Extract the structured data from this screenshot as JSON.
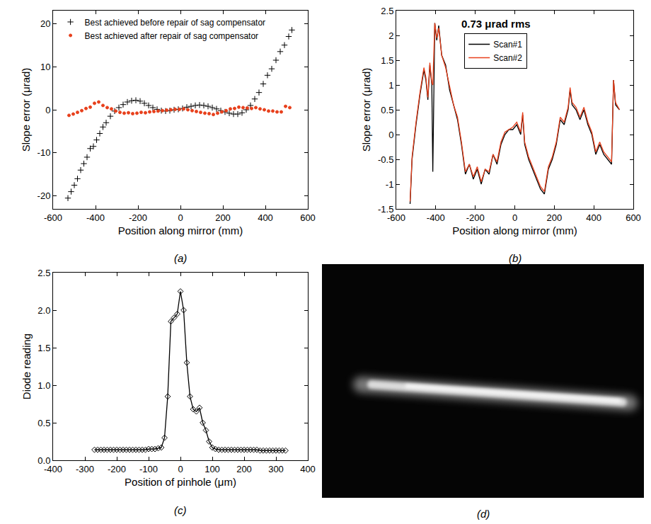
{
  "chart_data": [
    {
      "type": "scatter",
      "label": "(a)",
      "x_label": "Position along mirror (mm)",
      "y_label": "Slope error (μrad)",
      "xlim": [
        -600,
        600
      ],
      "xticks": [
        -600,
        -400,
        -200,
        0,
        200,
        400,
        600
      ],
      "ylim": [
        -23,
        23
      ],
      "yticks": [
        -20,
        -10,
        0,
        10,
        20
      ],
      "legend": "top left",
      "grid": false,
      "series": [
        {
          "name": "Best achieved before repair of sag compensator",
          "color": "#000000",
          "marker": "cross",
          "x": [
            -530,
            -515,
            -500,
            -485,
            -470,
            -455,
            -440,
            -425,
            -410,
            -395,
            -380,
            -365,
            -350,
            -330,
            -310,
            -290,
            -270,
            -250,
            -230,
            -210,
            -190,
            -170,
            -150,
            -130,
            -110,
            -90,
            -70,
            -50,
            -30,
            -10,
            10,
            30,
            50,
            70,
            90,
            110,
            130,
            150,
            170,
            190,
            210,
            230,
            250,
            270,
            290,
            310,
            330,
            350,
            370,
            390,
            410,
            430,
            450,
            470,
            490,
            510,
            525
          ],
          "values": [
            -20.5,
            -19,
            -17.5,
            -16,
            -14,
            -12.5,
            -11,
            -9,
            -8.5,
            -7,
            -5.5,
            -4,
            -3,
            -1.5,
            -0.3,
            0.5,
            1.2,
            1.8,
            2.1,
            2.2,
            2.0,
            1.5,
            1.0,
            0.5,
            0.1,
            -0.2,
            -0.3,
            -0.2,
            0.0,
            0.1,
            0.3,
            0.6,
            0.8,
            1.0,
            1.1,
            1.0,
            0.8,
            0.5,
            0.2,
            -0.2,
            -0.5,
            -0.8,
            -1.0,
            -1.0,
            -0.7,
            0.0,
            1.0,
            2.5,
            4.0,
            6.0,
            8.0,
            9.5,
            11.5,
            13.5,
            15.0,
            17.0,
            18.5
          ]
        },
        {
          "name": "Best achieved after repair of sag compensator",
          "color": "#e8401c",
          "marker": "dot",
          "x": [
            -525,
            -505,
            -485,
            -465,
            -445,
            -425,
            -405,
            -385,
            -365,
            -345,
            -325,
            -305,
            -285,
            -265,
            -245,
            -225,
            -205,
            -185,
            -165,
            -145,
            -125,
            -105,
            -85,
            -65,
            -45,
            -25,
            -5,
            15,
            35,
            55,
            75,
            95,
            115,
            135,
            155,
            175,
            195,
            215,
            235,
            255,
            275,
            295,
            315,
            335,
            355,
            375,
            395,
            415,
            435,
            455,
            475,
            495,
            515
          ],
          "values": [
            -1.3,
            -1.0,
            -0.6,
            -0.2,
            0.3,
            0.6,
            1.5,
            1.8,
            1.0,
            0.5,
            0.2,
            -0.3,
            -0.6,
            -0.8,
            -0.7,
            -0.9,
            -0.8,
            -0.6,
            -0.7,
            -0.5,
            -0.4,
            -0.3,
            -0.2,
            -0.1,
            0.0,
            0.1,
            0.1,
            0.2,
            0.0,
            -0.2,
            -0.4,
            -0.6,
            -0.8,
            -0.9,
            -1.1,
            -0.8,
            -0.5,
            -0.2,
            0.2,
            0.3,
            0.6,
            0.5,
            0.4,
            0.3,
            0.5,
            0.2,
            0.0,
            -0.3,
            -0.3,
            -0.5,
            -0.5,
            0.8,
            0.5
          ]
        }
      ]
    },
    {
      "type": "line",
      "label": "(b)",
      "annotations": [
        "0.73 μrad rms"
      ],
      "x_label": "Position along mirror (mm)",
      "y_label": "Slope error (μrad)",
      "xlim": [
        -600,
        600
      ],
      "xticks": [
        -600,
        -400,
        -200,
        0,
        200,
        400,
        600
      ],
      "ylim": [
        -1.5,
        2.5
      ],
      "yticks": [
        -1.5,
        -1.0,
        -0.5,
        0.0,
        0.5,
        1.0,
        1.5,
        2.0,
        2.5
      ],
      "legend": "top",
      "grid": false,
      "x": [
        -530,
        -520,
        -500,
        -480,
        -460,
        -450,
        -440,
        -430,
        -420,
        -415,
        -405,
        -395,
        -385,
        -370,
        -350,
        -330,
        -310,
        -290,
        -270,
        -250,
        -230,
        -210,
        -190,
        -170,
        -150,
        -130,
        -110,
        -90,
        -70,
        -50,
        -30,
        -10,
        10,
        30,
        40,
        50,
        70,
        90,
        110,
        130,
        150,
        170,
        190,
        210,
        230,
        250,
        270,
        280,
        290,
        310,
        330,
        350,
        370,
        390,
        410,
        430,
        450,
        470,
        490,
        500,
        510,
        530
      ],
      "series": [
        {
          "name": "Scan#1",
          "color": "#000000",
          "values": [
            -1.4,
            -0.5,
            0.2,
            0.8,
            1.3,
            1.1,
            0.7,
            1.4,
            1.0,
            -0.75,
            2.25,
            1.9,
            2.2,
            1.6,
            1.4,
            0.9,
            0.6,
            0.3,
            -0.2,
            -0.8,
            -0.6,
            -0.9,
            -0.7,
            -1.0,
            -0.7,
            -0.8,
            -0.4,
            -0.6,
            -0.2,
            0.0,
            0.1,
            0.1,
            0.2,
            0.0,
            0.4,
            -0.2,
            -0.5,
            -0.7,
            -0.9,
            -1.1,
            -1.2,
            -0.7,
            -0.5,
            -0.2,
            0.3,
            0.2,
            0.5,
            0.9,
            0.6,
            0.5,
            0.3,
            0.5,
            0.2,
            0.0,
            -0.4,
            -0.2,
            -0.4,
            -0.5,
            -0.6,
            1.1,
            0.6,
            0.5
          ]
        },
        {
          "name": "Scan#2",
          "color": "#e8401c",
          "values": [
            -1.35,
            -0.45,
            0.25,
            0.85,
            1.35,
            1.15,
            0.75,
            1.45,
            1.05,
            1.0,
            2.25,
            1.95,
            2.15,
            1.6,
            1.35,
            0.95,
            0.6,
            0.35,
            -0.15,
            -0.75,
            -0.6,
            -0.85,
            -0.65,
            -0.95,
            -0.7,
            -0.75,
            -0.4,
            -0.55,
            -0.15,
            0.05,
            0.1,
            0.15,
            0.25,
            0.05,
            0.45,
            -0.15,
            -0.45,
            -0.65,
            -0.85,
            -1.05,
            -1.15,
            -0.65,
            -0.45,
            -0.15,
            0.35,
            0.25,
            0.55,
            0.95,
            0.65,
            0.55,
            0.35,
            0.55,
            0.25,
            0.05,
            -0.35,
            -0.15,
            -0.35,
            -0.45,
            -0.55,
            1.1,
            0.65,
            0.5
          ]
        }
      ]
    },
    {
      "type": "line",
      "label": "(c)",
      "x_label": "Position of pinhole (μm)",
      "y_label": "Diode reading",
      "xlim": [
        -400,
        400
      ],
      "xticks": [
        -400,
        -300,
        -200,
        -100,
        0,
        100,
        200,
        300,
        400
      ],
      "ylim": [
        0.0,
        2.5
      ],
      "yticks": [
        {
          "value": 0,
          "label": "0.0"
        },
        0.5,
        {
          "value": 1,
          "label": "1.0"
        },
        1.5,
        {
          "value": 2,
          "label": "2.0"
        },
        2.5
      ],
      "grid": false,
      "x": [
        -270,
        -260,
        -250,
        -240,
        -230,
        -220,
        -210,
        -200,
        -190,
        -180,
        -170,
        -160,
        -150,
        -140,
        -130,
        -120,
        -110,
        -100,
        -90,
        -80,
        -70,
        -60,
        -50,
        -40,
        -30,
        -20,
        -10,
        0,
        10,
        20,
        30,
        40,
        50,
        60,
        70,
        80,
        90,
        100,
        110,
        120,
        130,
        140,
        150,
        160,
        170,
        180,
        190,
        200,
        210,
        220,
        230,
        240,
        250,
        260,
        270,
        280,
        290,
        300,
        310,
        320,
        330
      ],
      "series": [
        {
          "color": "#000000",
          "marker": "diamond",
          "line_style": "solid",
          "values": [
            0.14,
            0.14,
            0.14,
            0.14,
            0.14,
            0.14,
            0.14,
            0.14,
            0.14,
            0.14,
            0.14,
            0.14,
            0.14,
            0.14,
            0.14,
            0.14,
            0.14,
            0.15,
            0.15,
            0.15,
            0.16,
            0.17,
            0.3,
            0.85,
            1.85,
            1.9,
            1.95,
            2.25,
            2.0,
            1.3,
            0.85,
            0.68,
            0.65,
            0.7,
            0.5,
            0.4,
            0.25,
            0.17,
            0.15,
            0.14,
            0.14,
            0.14,
            0.14,
            0.14,
            0.14,
            0.14,
            0.14,
            0.14,
            0.14,
            0.14,
            0.14,
            0.14,
            0.13,
            0.13,
            0.13,
            0.13,
            0.13,
            0.13,
            0.13,
            0.13,
            0.13
          ]
        }
      ]
    },
    {
      "type": "image",
      "label": "(d)"
    }
  ]
}
